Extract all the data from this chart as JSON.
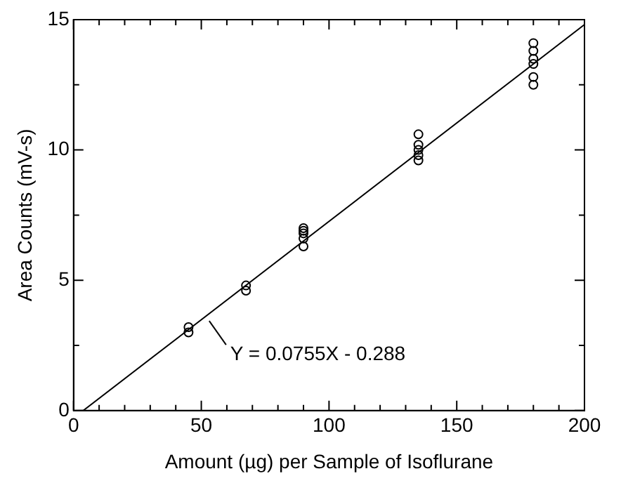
{
  "chart_data": {
    "type": "scatter",
    "xlabel": "Amount (µg) per Sample of Isoflurane",
    "ylabel": "Area Counts (mV-s)",
    "series": [
      {
        "type": "scatter",
        "color": "#000000",
        "marker": "circle",
        "x": [
          45,
          45,
          67.5,
          67.5,
          90,
          90,
          90,
          90,
          90,
          135,
          135,
          135,
          135,
          135,
          180,
          180,
          180,
          180,
          180,
          180
        ],
        "values": [
          3.0,
          3.2,
          4.6,
          4.8,
          6.3,
          6.6,
          6.8,
          6.9,
          7.0,
          9.6,
          9.8,
          10.0,
          10.2,
          10.6,
          12.5,
          12.8,
          13.3,
          13.5,
          13.8,
          14.1
        ]
      },
      {
        "type": "line",
        "color": "#000000",
        "marker": "none",
        "line_style": "solid",
        "x": [
          3.8,
          200
        ],
        "values": [
          0,
          14.81
        ]
      }
    ],
    "xlim": [
      0,
      200
    ],
    "ylim": [
      0,
      15
    ],
    "xticks": [
      0,
      {
        "value": 10,
        "label": null
      },
      {
        "value": 20,
        "label": null
      },
      {
        "value": 30,
        "label": null
      },
      {
        "value": 40,
        "label": null
      },
      50,
      {
        "value": 60,
        "label": null
      },
      {
        "value": 70,
        "label": null
      },
      {
        "value": 80,
        "label": null
      },
      {
        "value": 90,
        "label": null
      },
      100,
      {
        "value": 110,
        "label": null
      },
      {
        "value": 120,
        "label": null
      },
      {
        "value": 130,
        "label": null
      },
      {
        "value": 140,
        "label": null
      },
      150,
      {
        "value": 160,
        "label": null
      },
      {
        "value": 170,
        "label": null
      },
      {
        "value": 180,
        "label": null
      },
      {
        "value": 190,
        "label": null
      },
      200
    ],
    "yticks": [
      0,
      {
        "value": 2.5,
        "label": null
      },
      5,
      {
        "value": 7.5,
        "label": null
      },
      10,
      {
        "value": 12.5,
        "label": null
      },
      15
    ],
    "grid": false,
    "legend": false,
    "annotations": [
      {
        "text": "Y = 0.0755X - 0.288",
        "x": 52,
        "y": 3.6
      }
    ]
  }
}
